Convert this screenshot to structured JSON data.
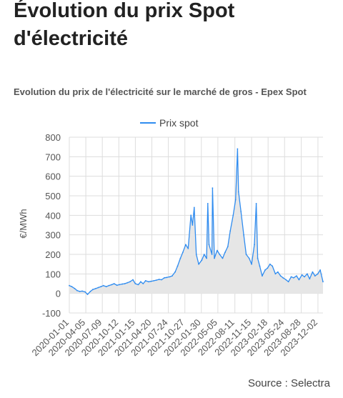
{
  "page": {
    "title": "Évolution du prix Spot d'électricité",
    "source": "Source : Selectra"
  },
  "chart_data": {
    "type": "area",
    "title": "Evolution du prix de l'électricité sur le marché de gros - Epex Spot",
    "ylabel": "€/MWh",
    "xlabel": "",
    "ylim": [
      -100,
      800
    ],
    "yticks": [
      -100,
      0,
      100,
      200,
      300,
      400,
      500,
      600,
      700,
      800
    ],
    "legend": "top-center",
    "grid": true,
    "colors": {
      "line": "#2f8cf0",
      "fill": "#e6e6e6",
      "grid": "#dddddd"
    },
    "xticks": [
      "2020-01-01",
      "2020-04-05",
      "2020-07-09",
      "2020-10-12",
      "2021-01-15",
      "2021-04-20",
      "2021-07-24",
      "2021-10-27",
      "2022-01-30",
      "2022-05-05",
      "2022-08-11",
      "2022-11-15",
      "2023-02-18",
      "2023-05-24",
      "2023-08-28",
      "2023-12-02"
    ],
    "series": [
      {
        "name": "Prix spot",
        "x": [
          "2020-01-01",
          "2020-01-15",
          "2020-02-01",
          "2020-02-15",
          "2020-03-01",
          "2020-03-15",
          "2020-04-01",
          "2020-04-15",
          "2020-05-01",
          "2020-05-15",
          "2020-06-01",
          "2020-06-15",
          "2020-07-01",
          "2020-07-15",
          "2020-08-01",
          "2020-08-15",
          "2020-09-01",
          "2020-09-15",
          "2020-10-01",
          "2020-10-15",
          "2020-11-01",
          "2020-11-15",
          "2020-12-01",
          "2020-12-15",
          "2021-01-01",
          "2021-01-15",
          "2021-02-01",
          "2021-02-15",
          "2021-03-01",
          "2021-03-15",
          "2021-04-01",
          "2021-04-15",
          "2021-05-01",
          "2021-05-15",
          "2021-06-01",
          "2021-06-15",
          "2021-07-01",
          "2021-07-15",
          "2021-08-01",
          "2021-08-15",
          "2021-09-01",
          "2021-09-15",
          "2021-10-01",
          "2021-10-15",
          "2021-11-01",
          "2021-11-15",
          "2021-12-01",
          "2021-12-10",
          "2021-12-20",
          "2022-01-01",
          "2022-01-15",
          "2022-02-01",
          "2022-02-15",
          "2022-03-01",
          "2022-03-08",
          "2022-03-15",
          "2022-04-01",
          "2022-04-04",
          "2022-04-15",
          "2022-05-01",
          "2022-05-15",
          "2022-06-01",
          "2022-06-15",
          "2022-07-01",
          "2022-07-15",
          "2022-08-01",
          "2022-08-15",
          "2022-08-26",
          "2022-09-01",
          "2022-09-15",
          "2022-10-01",
          "2022-10-15",
          "2022-11-01",
          "2022-11-15",
          "2022-12-01",
          "2022-12-12",
          "2022-12-20",
          "2023-01-01",
          "2023-01-15",
          "2023-02-01",
          "2023-02-15",
          "2023-03-01",
          "2023-03-15",
          "2023-04-01",
          "2023-04-15",
          "2023-05-01",
          "2023-05-15",
          "2023-06-01",
          "2023-06-15",
          "2023-07-01",
          "2023-07-15",
          "2023-08-01",
          "2023-08-15",
          "2023-09-01",
          "2023-09-15",
          "2023-10-01",
          "2023-10-15",
          "2023-11-01",
          "2023-11-15",
          "2023-12-01",
          "2023-12-15",
          "2023-12-31"
        ],
        "values": [
          40,
          35,
          25,
          15,
          10,
          12,
          8,
          -5,
          10,
          20,
          25,
          30,
          35,
          40,
          35,
          40,
          45,
          50,
          42,
          45,
          48,
          50,
          55,
          60,
          70,
          50,
          45,
          60,
          50,
          65,
          60,
          62,
          65,
          68,
          72,
          70,
          80,
          82,
          85,
          90,
          110,
          140,
          180,
          210,
          250,
          230,
          400,
          350,
          440,
          200,
          150,
          170,
          200,
          180,
          460,
          250,
          200,
          540,
          180,
          220,
          200,
          180,
          210,
          240,
          320,
          400,
          480,
          740,
          520,
          420,
          300,
          200,
          180,
          150,
          250,
          460,
          180,
          140,
          90,
          120,
          130,
          150,
          140,
          100,
          110,
          90,
          80,
          70,
          60,
          85,
          80,
          90,
          70,
          95,
          85,
          100,
          75,
          110,
          90,
          100,
          120,
          60
        ]
      }
    ]
  }
}
